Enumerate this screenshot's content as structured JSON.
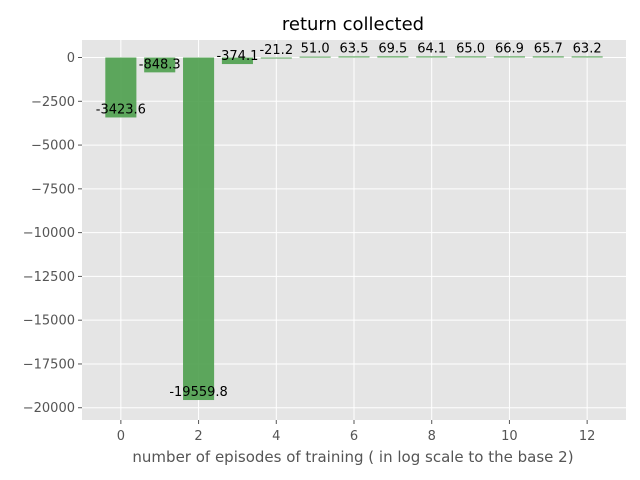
{
  "chart_data": {
    "type": "bar",
    "title": "return collected",
    "xlabel": "number of episodes of training ( in log scale to the base 2)",
    "ylabel": "",
    "x": [
      0,
      1,
      2,
      3,
      4,
      5,
      6,
      7,
      8,
      9,
      10,
      11,
      12
    ],
    "values": [
      -3423.6,
      -848.3,
      -19559.8,
      -374.1,
      -21.2,
      51.0,
      63.5,
      69.5,
      64.1,
      65.0,
      66.9,
      65.7,
      63.2
    ],
    "data_labels": [
      "-3423.6",
      "-848.3",
      "-19559.8",
      "-374.1",
      "-21.2",
      "51.0",
      "63.5",
      "69.5",
      "64.1",
      "65.0",
      "66.9",
      "65.7",
      "63.2"
    ],
    "xticks": [
      0,
      2,
      4,
      6,
      8,
      10,
      12
    ],
    "yticks": [
      0,
      -2500,
      -5000,
      -7500,
      -10000,
      -12500,
      -15000,
      -17500,
      -20000
    ],
    "xtick_labels": [
      "0",
      "2",
      "4",
      "6",
      "8",
      "10",
      "12"
    ],
    "ytick_labels": [
      "0",
      "−2500",
      "−5000",
      "−7500",
      "−10000",
      "−12500",
      "−15000",
      "−17500",
      "−20000"
    ],
    "xlim": [
      -1.0,
      13.0
    ],
    "ylim": [
      -20700,
      1000
    ],
    "grid": true,
    "style": "ggplot",
    "colors": {
      "bar": "#4c9f4c",
      "background": "#e5e5e5",
      "grid": "#ffffff"
    }
  }
}
